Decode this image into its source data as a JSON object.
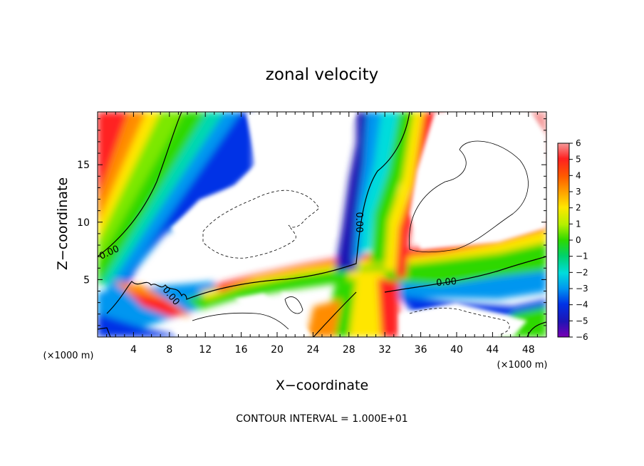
{
  "chart_data": {
    "type": "heatmap",
    "title": "zonal velocity",
    "xlabel": "X−coordinate",
    "ylabel": "Z−coordinate",
    "x_multiplier": "(×1000 m)",
    "z_multiplier": "(×1000 m)",
    "x_ticks": [
      4,
      8,
      12,
      16,
      20,
      24,
      28,
      32,
      36,
      40,
      44,
      48
    ],
    "z_ticks": [
      5,
      10,
      15
    ],
    "xlim": [
      0,
      50
    ],
    "zlim": [
      0,
      19.6
    ],
    "colorbar_ticks": [
      "6",
      "5",
      "4",
      "3",
      "2",
      "1",
      "0",
      "−1",
      "−2",
      "−3",
      "−4",
      "−5",
      "−6"
    ],
    "colorbar_range": [
      -6,
      6
    ],
    "contour_labels": [
      "0.00",
      "0.00",
      "0.00",
      "0.00"
    ],
    "footer": "CONTOUR INTERVAL = 1.000E+01",
    "colors": {
      "pos6": "#f08a8a",
      "pos5": "#ff1a1a",
      "pos4": "#ff4e00",
      "pos3": "#ff9a00",
      "pos2": "#ffe600",
      "pos1": "#b4f000",
      "zero": "#2ed800",
      "neg1": "#00d26a",
      "neg2": "#00dcdc",
      "neg3": "#0096f0",
      "neg4": "#0032e6",
      "neg5": "#1e14b4",
      "neg6": "#7800b4"
    }
  }
}
